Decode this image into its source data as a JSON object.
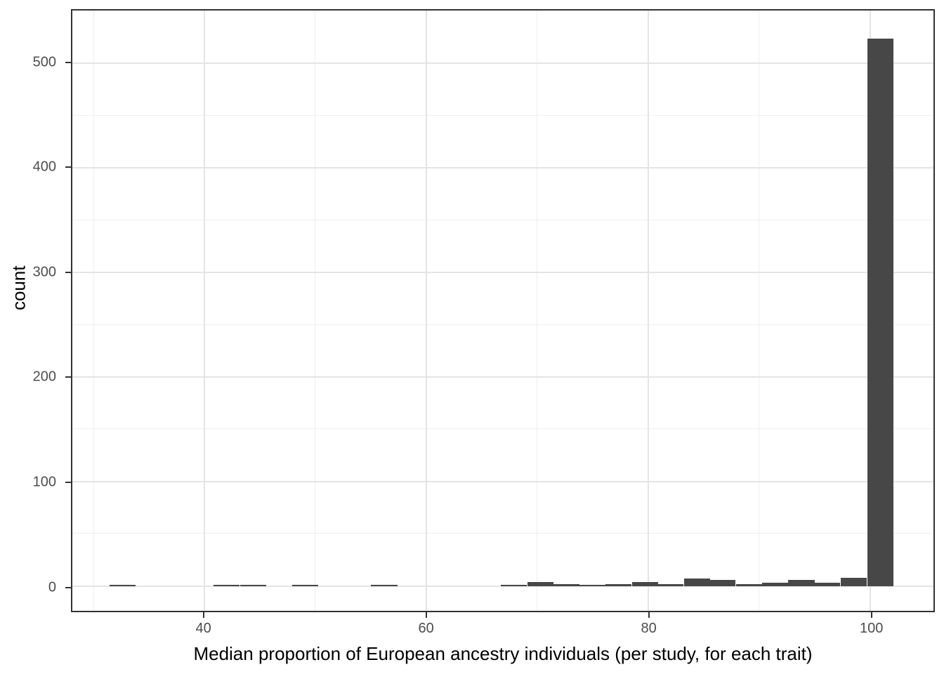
{
  "chart_data": {
    "type": "bar",
    "subtype": "histogram",
    "title": "",
    "xlabel": "Median proportion of European ancestry individuals (per study, for each trait)",
    "ylabel": "count",
    "bar_color": "#474747",
    "grid": "major+minor on, light grey, white panel, dark panel border",
    "legend_position": "none",
    "xlim": [
      28.1,
      105.7
    ],
    "ylim": [
      -23.7,
      550.6
    ],
    "x_ticks": [
      40,
      60,
      80,
      100
    ],
    "y_ticks": [
      0,
      100,
      200,
      300,
      400,
      500
    ],
    "x_minor_ticks": [
      30,
      50,
      70,
      90
    ],
    "y_minor_ticks": [
      50,
      150,
      250,
      350,
      450
    ],
    "binwidth": 2.35,
    "bins": [
      {
        "x": 32.6,
        "count": 1
      },
      {
        "x": 42.0,
        "count": 1
      },
      {
        "x": 44.4,
        "count": 1
      },
      {
        "x": 49.1,
        "count": 1
      },
      {
        "x": 56.2,
        "count": 1
      },
      {
        "x": 67.9,
        "count": 1
      },
      {
        "x": 70.3,
        "count": 4
      },
      {
        "x": 72.6,
        "count": 2
      },
      {
        "x": 75.0,
        "count": 1
      },
      {
        "x": 77.3,
        "count": 2
      },
      {
        "x": 79.7,
        "count": 4
      },
      {
        "x": 82.0,
        "count": 2
      },
      {
        "x": 84.4,
        "count": 7
      },
      {
        "x": 86.7,
        "count": 6
      },
      {
        "x": 89.1,
        "count": 2
      },
      {
        "x": 91.4,
        "count": 3
      },
      {
        "x": 93.8,
        "count": 6
      },
      {
        "x": 96.1,
        "count": 3
      },
      {
        "x": 98.5,
        "count": 8
      },
      {
        "x": 100.9,
        "count": 524
      }
    ]
  }
}
